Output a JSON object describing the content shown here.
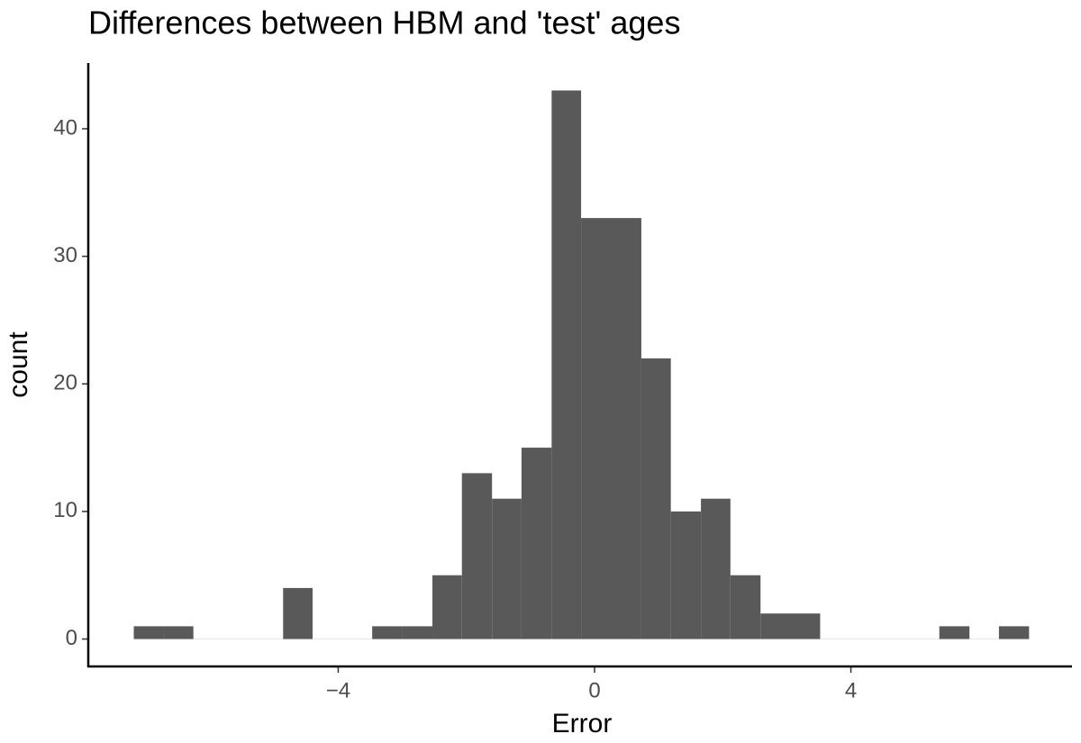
{
  "chart_data": {
    "type": "histogram",
    "title": "Differences between HBM and 'test' ages",
    "x_label": "Error",
    "y_label": "count",
    "color": "#595959",
    "bins": [
      -7.19,
      -6.72,
      -6.26,
      -5.79,
      -5.33,
      -4.86,
      -4.4,
      -3.93,
      -3.47,
      -3.0,
      -2.53,
      -2.07,
      -1.6,
      -1.14,
      -0.67,
      -0.21,
      0.26,
      0.73,
      1.19,
      1.66,
      2.12,
      2.59,
      3.05,
      3.52,
      3.98,
      4.45,
      4.92,
      5.38,
      5.85,
      6.31,
      6.78
    ],
    "values": [
      1,
      1,
      0,
      0,
      0,
      4,
      0,
      0,
      1,
      1,
      5,
      13,
      11,
      15,
      43,
      33,
      33,
      22,
      10,
      11,
      5,
      2,
      2,
      0,
      0,
      0,
      0,
      1,
      0,
      1
    ],
    "xlim": [
      -7.9,
      7.45
    ],
    "ylim": [
      -2.15,
      45.15
    ],
    "xticks": [
      {
        "value": -4,
        "label": "−4"
      },
      0,
      4
    ],
    "yticks": [
      0,
      10,
      20,
      30,
      40
    ]
  }
}
